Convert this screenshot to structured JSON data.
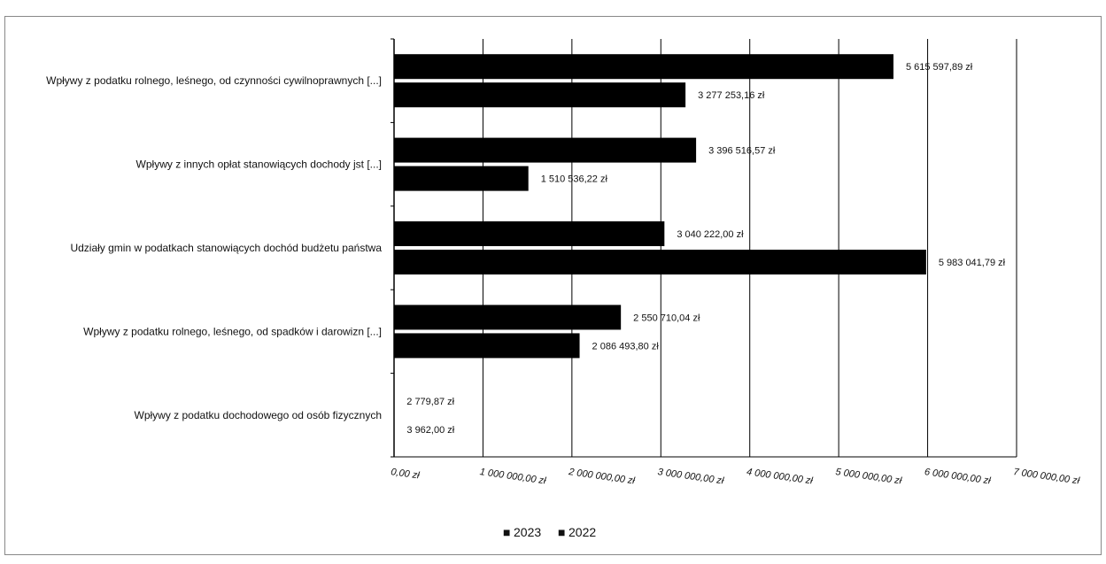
{
  "chart_data": {
    "type": "bar",
    "orientation": "horizontal",
    "title": "",
    "xlabel": "",
    "ylabel": "",
    "xlim": [
      0,
      7000000
    ],
    "grid": "vertical",
    "legend_position": "bottom",
    "categories": [
      "Wpływy z podatku rolnego, leśnego, od czynności cywilnoprawnych [...]",
      "Wpływy z innych opłat stanowiących dochody jst [...]",
      "Udziały gmin w podatkach stanowiących dochód budżetu państwa",
      "Wpływy z podatku rolnego, leśnego, od spadków i darowizn [...]",
      "Wpływy z podatku dochodowego od osób fizycznych"
    ],
    "series": [
      {
        "name": "2023",
        "color": "#000000",
        "values": [
          5615597.89,
          3396516.57,
          3040222.0,
          2550710.04,
          2779.87
        ],
        "labels": [
          "5 615 597,89 zł",
          "3 396 516,57 zł",
          "3 040 222,00 zł",
          "2 550 710,04 zł",
          "2 779,87 zł"
        ]
      },
      {
        "name": "2022",
        "color": "#000000",
        "values": [
          3277253.16,
          1510536.22,
          5983041.79,
          2086493.8,
          3962.0
        ],
        "labels": [
          "3 277 253,16 zł",
          "1 510 536,22 zł",
          "5 983 041,79 zł",
          "2 086 493,80 zł",
          "3 962,00 zł"
        ]
      }
    ],
    "x_ticks": [
      0,
      1000000,
      2000000,
      3000000,
      4000000,
      5000000,
      6000000,
      7000000
    ],
    "x_tick_labels": [
      "0,00 zł",
      "1 000 000,00 zł",
      "2 000 000,00 zł",
      "3 000 000,00 zł",
      "4 000 000,00 zł",
      "5 000 000,00 zł",
      "6 000 000,00 zł",
      "7 000 000,00 zł"
    ],
    "legend": [
      {
        "symbol": "■",
        "label": "2023"
      },
      {
        "symbol": "■",
        "label": "2022"
      }
    ]
  }
}
